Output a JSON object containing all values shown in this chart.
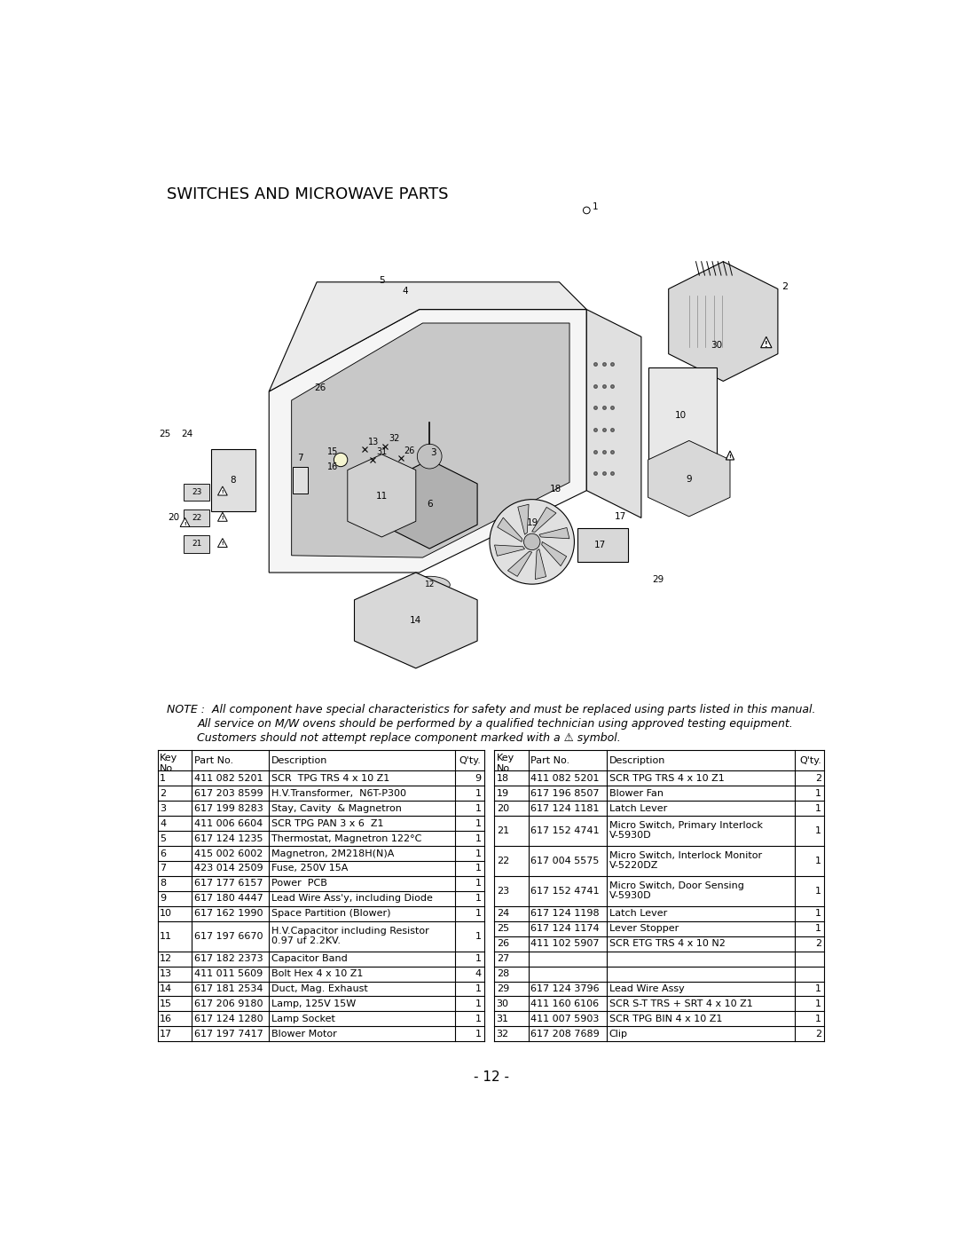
{
  "title": "SWITCHES AND MICROWAVE PARTS",
  "page_number": "- 12 -",
  "note_line1": "NOTE :  All component have special characteristics for safety and must be replaced using parts listed in this manual.",
  "note_line2": "All service on M/W ovens should be performed by a qualified technician using approved testing equipment.",
  "note_line3": "Customers should not attempt replace component marked with a ⚠ symbol.",
  "bg_color": "#ffffff",
  "text_color": "#000000",
  "table_left": [
    {
      "key": "1",
      "part": "411 082 5201",
      "desc": "SCR  TPG TRS 4 x 10 Z1",
      "qty": "9"
    },
    {
      "key": "2",
      "part": "617 203 8599",
      "desc": "H.V.Transformer,  N6T-P300",
      "qty": "1"
    },
    {
      "key": "3",
      "part": "617 199 8283",
      "desc": "Stay, Cavity  & Magnetron",
      "qty": "1"
    },
    {
      "key": "4",
      "part": "411 006 6604",
      "desc": "SCR TPG PAN 3 x 6  Z1",
      "qty": "1"
    },
    {
      "key": "5",
      "part": "617 124 1235",
      "desc": "Thermostat, Magnetron 122°C",
      "qty": "1"
    },
    {
      "key": "6",
      "part": "415 002 6002",
      "desc": "Magnetron, 2M218H(N)A",
      "qty": "1"
    },
    {
      "key": "7",
      "part": "423 014 2509",
      "desc": "Fuse, 250V 15A",
      "qty": "1"
    },
    {
      "key": "8",
      "part": "617 177 6157",
      "desc": "Power  PCB",
      "qty": "1"
    },
    {
      "key": "9",
      "part": "617 180 4447",
      "desc": "Lead Wire Ass'y, including Diode",
      "qty": "1"
    },
    {
      "key": "10",
      "part": "617 162 1990",
      "desc": "Space Partition (Blower)",
      "qty": "1"
    },
    {
      "key": "11",
      "part": "617 197 6670",
      "desc": "H.V.Capacitor including Resistor\n0.97 uf 2.2KV.",
      "qty": "1"
    },
    {
      "key": "12",
      "part": "617 182 2373",
      "desc": "Capacitor Band",
      "qty": "1"
    },
    {
      "key": "13",
      "part": "411 011 5609",
      "desc": "Bolt Hex 4 x 10 Z1",
      "qty": "4"
    },
    {
      "key": "14",
      "part": "617 181 2534",
      "desc": "Duct, Mag. Exhaust",
      "qty": "1"
    },
    {
      "key": "15",
      "part": "617 206 9180",
      "desc": "Lamp, 125V 15W",
      "qty": "1"
    },
    {
      "key": "16",
      "part": "617 124 1280",
      "desc": "Lamp Socket",
      "qty": "1"
    },
    {
      "key": "17",
      "part": "617 197 7417",
      "desc": "Blower Motor",
      "qty": "1"
    }
  ],
  "table_right": [
    {
      "key": "18",
      "part": "411 082 5201",
      "desc": "SCR TPG TRS 4 x 10 Z1",
      "qty": "2"
    },
    {
      "key": "19",
      "part": "617 196 8507",
      "desc": "Blower Fan",
      "qty": "1"
    },
    {
      "key": "20",
      "part": "617 124 1181",
      "desc": "Latch Lever",
      "qty": "1"
    },
    {
      "key": "21",
      "part": "617 152 4741",
      "desc": "Micro Switch, Primary Interlock\nV-5930D",
      "qty": "1"
    },
    {
      "key": "22",
      "part": "617 004 5575",
      "desc": "Micro Switch, Interlock Monitor\nV-5220DZ",
      "qty": "1"
    },
    {
      "key": "23",
      "part": "617 152 4741",
      "desc": "Micro Switch, Door Sensing\nV-5930D",
      "qty": "1"
    },
    {
      "key": "24",
      "part": "617 124 1198",
      "desc": "Latch Lever",
      "qty": "1"
    },
    {
      "key": "25",
      "part": "617 124 1174",
      "desc": "Lever Stopper",
      "qty": "1"
    },
    {
      "key": "26",
      "part": "411 102 5907",
      "desc": "SCR ETG TRS 4 x 10 N2",
      "qty": "2"
    },
    {
      "key": "27",
      "part": "",
      "desc": "",
      "qty": ""
    },
    {
      "key": "28",
      "part": "",
      "desc": "",
      "qty": ""
    },
    {
      "key": "29",
      "part": "617 124 3796",
      "desc": "Lead Wire Assy",
      "qty": "1"
    },
    {
      "key": "30",
      "part": "411 160 6106",
      "desc": "SCR S-T TRS + SRT 4 x 10 Z1",
      "qty": "1"
    },
    {
      "key": "31",
      "part": "411 007 5903",
      "desc": "SCR TPG BIN 4 x 10 Z1",
      "qty": "1"
    },
    {
      "key": "32",
      "part": "617 208 7689",
      "desc": "Clip",
      "qty": "2"
    }
  ]
}
